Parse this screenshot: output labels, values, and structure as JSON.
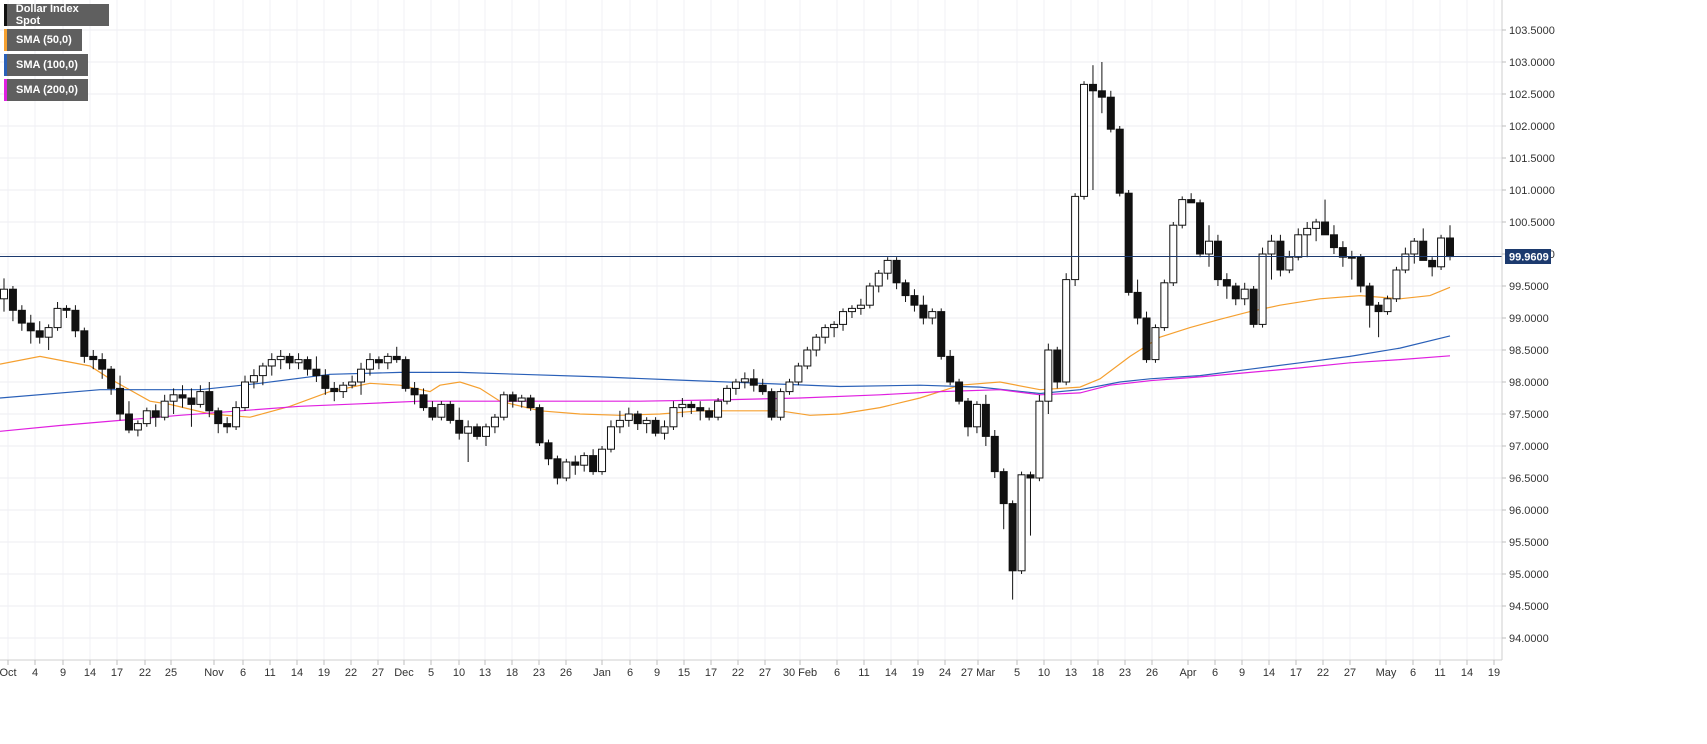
{
  "chart_data": {
    "type": "candlestick",
    "title": "Dollar Index Spot",
    "current_price": "99.9609",
    "ylim": [
      93.7,
      103.9
    ],
    "y_ticks": [
      "94.0000",
      "94.5000",
      "95.0000",
      "95.5000",
      "96.0000",
      "96.5000",
      "97.0000",
      "97.5000",
      "98.0000",
      "98.5000",
      "99.0000",
      "99.5000",
      "100.0000",
      "100.5000",
      "101.0000",
      "101.5000",
      "102.0000",
      "102.5000",
      "103.0000",
      "103.5000"
    ],
    "x_ticks": [
      "Oct",
      "4",
      "9",
      "14",
      "17",
      "22",
      "25",
      "Nov",
      "6",
      "11",
      "14",
      "19",
      "22",
      "27",
      "Dec",
      "5",
      "10",
      "13",
      "18",
      "23",
      "26",
      "Jan",
      "6",
      "9",
      "15",
      "17",
      "22",
      "27",
      "30 Feb",
      "6",
      "11",
      "14",
      "19",
      "24",
      "27 Mar",
      "5",
      "10",
      "13",
      "18",
      "23",
      "26",
      "Apr",
      "6",
      "9",
      "14",
      "17",
      "22",
      "27",
      "May",
      "6",
      "11",
      "14",
      "19"
    ],
    "legend": [
      {
        "name": "Dollar Index Spot",
        "color": "#111111"
      },
      {
        "name": "SMA (50,0)",
        "color": "#f5a030"
      },
      {
        "name": "SMA (100,0)",
        "color": "#2a60b8"
      },
      {
        "name": "SMA (200,0)",
        "color": "#e020e0"
      }
    ],
    "candles": [
      [
        99.3,
        99.62,
        99.1,
        99.45
      ],
      [
        99.45,
        99.5,
        98.95,
        99.12
      ],
      [
        99.12,
        99.2,
        98.8,
        98.92
      ],
      [
        98.92,
        99.05,
        98.6,
        98.8
      ],
      [
        98.8,
        98.95,
        98.6,
        98.7
      ],
      [
        98.7,
        98.9,
        98.5,
        98.85
      ],
      [
        98.85,
        99.25,
        98.8,
        99.15
      ],
      [
        99.15,
        99.2,
        99.0,
        99.12
      ],
      [
        99.12,
        99.2,
        98.7,
        98.8
      ],
      [
        98.8,
        98.85,
        98.3,
        98.4
      ],
      [
        98.4,
        98.5,
        98.2,
        98.35
      ],
      [
        98.35,
        98.45,
        98.05,
        98.2
      ],
      [
        98.2,
        98.25,
        97.8,
        97.9
      ],
      [
        97.9,
        98.1,
        97.4,
        97.5
      ],
      [
        97.5,
        97.7,
        97.2,
        97.25
      ],
      [
        97.25,
        97.4,
        97.15,
        97.35
      ],
      [
        97.35,
        97.6,
        97.3,
        97.55
      ],
      [
        97.55,
        97.65,
        97.3,
        97.45
      ],
      [
        97.45,
        97.8,
        97.4,
        97.7
      ],
      [
        97.7,
        97.9,
        97.5,
        97.8
      ],
      [
        97.8,
        97.95,
        97.6,
        97.75
      ],
      [
        97.75,
        97.9,
        97.3,
        97.65
      ],
      [
        97.65,
        97.95,
        97.6,
        97.85
      ],
      [
        97.85,
        98.0,
        97.45,
        97.55
      ],
      [
        97.55,
        97.6,
        97.2,
        97.35
      ],
      [
        97.35,
        97.45,
        97.2,
        97.3
      ],
      [
        97.3,
        97.7,
        97.25,
        97.6
      ],
      [
        97.6,
        98.1,
        97.55,
        98.0
      ],
      [
        98.0,
        98.2,
        97.9,
        98.1
      ],
      [
        98.1,
        98.3,
        97.95,
        98.25
      ],
      [
        98.25,
        98.45,
        98.1,
        98.35
      ],
      [
        98.35,
        98.5,
        98.2,
        98.4
      ],
      [
        98.4,
        98.45,
        98.2,
        98.3
      ],
      [
        98.3,
        98.45,
        98.2,
        98.35
      ],
      [
        98.35,
        98.4,
        98.1,
        98.2
      ],
      [
        98.2,
        98.4,
        98.0,
        98.1
      ],
      [
        98.1,
        98.2,
        97.8,
        97.9
      ],
      [
        97.9,
        98.0,
        97.7,
        97.85
      ],
      [
        97.85,
        98.0,
        97.75,
        97.95
      ],
      [
        97.95,
        98.1,
        97.9,
        98.0
      ],
      [
        98.0,
        98.3,
        97.8,
        98.2
      ],
      [
        98.2,
        98.45,
        98.1,
        98.35
      ],
      [
        98.35,
        98.4,
        98.2,
        98.3
      ],
      [
        98.3,
        98.45,
        98.2,
        98.4
      ],
      [
        98.4,
        98.55,
        98.3,
        98.35
      ],
      [
        98.35,
        98.4,
        97.85,
        97.9
      ],
      [
        97.9,
        98.0,
        97.65,
        97.8
      ],
      [
        97.8,
        97.9,
        97.55,
        97.6
      ],
      [
        97.6,
        97.7,
        97.4,
        97.45
      ],
      [
        97.45,
        97.7,
        97.4,
        97.65
      ],
      [
        97.65,
        97.7,
        97.35,
        97.4
      ],
      [
        97.4,
        97.6,
        97.1,
        97.2
      ],
      [
        97.2,
        97.4,
        96.75,
        97.3
      ],
      [
        97.3,
        97.35,
        97.1,
        97.15
      ],
      [
        97.15,
        97.35,
        97.0,
        97.3
      ],
      [
        97.3,
        97.5,
        97.2,
        97.45
      ],
      [
        97.45,
        97.85,
        97.4,
        97.8
      ],
      [
        97.8,
        97.85,
        97.6,
        97.7
      ],
      [
        97.7,
        97.8,
        97.6,
        97.75
      ],
      [
        97.75,
        97.8,
        97.55,
        97.6
      ],
      [
        97.6,
        97.65,
        97.0,
        97.05
      ],
      [
        97.05,
        97.1,
        96.7,
        96.8
      ],
      [
        96.8,
        96.85,
        96.4,
        96.5
      ],
      [
        96.5,
        96.8,
        96.45,
        96.75
      ],
      [
        96.75,
        96.85,
        96.55,
        96.7
      ],
      [
        96.7,
        96.9,
        96.6,
        96.85
      ],
      [
        96.85,
        96.95,
        96.55,
        96.6
      ],
      [
        96.6,
        97.0,
        96.55,
        96.95
      ],
      [
        96.95,
        97.4,
        96.9,
        97.3
      ],
      [
        97.3,
        97.55,
        97.2,
        97.4
      ],
      [
        97.4,
        97.6,
        97.3,
        97.5
      ],
      [
        97.5,
        97.55,
        97.25,
        97.35
      ],
      [
        97.35,
        97.45,
        97.2,
        97.4
      ],
      [
        97.4,
        97.45,
        97.15,
        97.2
      ],
      [
        97.2,
        97.4,
        97.1,
        97.3
      ],
      [
        97.3,
        97.7,
        97.25,
        97.6
      ],
      [
        97.6,
        97.75,
        97.45,
        97.65
      ],
      [
        97.65,
        97.7,
        97.5,
        97.6
      ],
      [
        97.6,
        97.7,
        97.4,
        97.55
      ],
      [
        97.55,
        97.6,
        97.4,
        97.45
      ],
      [
        97.45,
        97.75,
        97.4,
        97.7
      ],
      [
        97.7,
        97.95,
        97.65,
        97.9
      ],
      [
        97.9,
        98.05,
        97.8,
        98.0
      ],
      [
        98.0,
        98.15,
        97.9,
        98.05
      ],
      [
        98.05,
        98.2,
        97.85,
        97.95
      ],
      [
        97.95,
        98.05,
        97.8,
        97.85
      ],
      [
        97.85,
        97.9,
        97.4,
        97.45
      ],
      [
        97.45,
        97.9,
        97.4,
        97.85
      ],
      [
        97.85,
        98.05,
        97.8,
        98.0
      ],
      [
        98.0,
        98.3,
        97.95,
        98.25
      ],
      [
        98.25,
        98.55,
        98.2,
        98.5
      ],
      [
        98.5,
        98.75,
        98.4,
        98.7
      ],
      [
        98.7,
        98.9,
        98.6,
        98.85
      ],
      [
        98.85,
        98.95,
        98.7,
        98.9
      ],
      [
        98.9,
        99.15,
        98.8,
        99.1
      ],
      [
        99.1,
        99.2,
        99.0,
        99.15
      ],
      [
        99.15,
        99.3,
        99.05,
        99.2
      ],
      [
        99.2,
        99.55,
        99.15,
        99.5
      ],
      [
        99.5,
        99.75,
        99.4,
        99.7
      ],
      [
        99.7,
        99.95,
        99.6,
        99.9
      ],
      [
        99.9,
        99.95,
        99.45,
        99.55
      ],
      [
        99.55,
        99.6,
        99.25,
        99.35
      ],
      [
        99.35,
        99.45,
        99.1,
        99.2
      ],
      [
        99.2,
        99.35,
        98.9,
        99.0
      ],
      [
        99.0,
        99.15,
        98.9,
        99.1
      ],
      [
        99.1,
        99.15,
        98.35,
        98.4
      ],
      [
        98.4,
        98.5,
        97.95,
        98.0
      ],
      [
        98.0,
        98.05,
        97.65,
        97.7
      ],
      [
        97.7,
        97.75,
        97.15,
        97.3
      ],
      [
        97.3,
        97.7,
        97.2,
        97.65
      ],
      [
        97.65,
        97.8,
        97.0,
        97.15
      ],
      [
        97.15,
        97.25,
        96.5,
        96.6
      ],
      [
        96.6,
        96.65,
        95.7,
        96.1
      ],
      [
        96.1,
        96.15,
        94.6,
        95.05
      ],
      [
        95.05,
        96.6,
        95.0,
        96.55
      ],
      [
        96.55,
        96.6,
        95.6,
        96.5
      ],
      [
        96.5,
        97.8,
        96.45,
        97.7
      ],
      [
        97.7,
        98.6,
        97.5,
        98.5
      ],
      [
        98.5,
        98.55,
        97.9,
        98.0
      ],
      [
        98.0,
        99.7,
        97.95,
        99.6
      ],
      [
        99.6,
        100.95,
        99.5,
        100.9
      ],
      [
        100.9,
        102.7,
        100.85,
        102.65
      ],
      [
        102.65,
        102.95,
        101.0,
        102.55
      ],
      [
        102.55,
        103.0,
        102.2,
        102.45
      ],
      [
        102.45,
        102.55,
        101.9,
        101.95
      ],
      [
        101.95,
        102.0,
        100.9,
        100.95
      ],
      [
        100.95,
        101.0,
        99.35,
        99.4
      ],
      [
        99.4,
        99.6,
        98.9,
        99.0
      ],
      [
        99.0,
        99.1,
        98.3,
        98.35
      ],
      [
        98.35,
        98.9,
        98.3,
        98.85
      ],
      [
        98.85,
        99.6,
        98.8,
        99.55
      ],
      [
        99.55,
        100.5,
        99.5,
        100.45
      ],
      [
        100.45,
        100.9,
        100.4,
        100.85
      ],
      [
        100.85,
        100.95,
        100.8,
        100.8
      ],
      [
        100.8,
        100.85,
        99.95,
        100.0
      ],
      [
        100.0,
        100.45,
        99.8,
        100.2
      ],
      [
        100.2,
        100.3,
        99.5,
        99.6
      ],
      [
        99.6,
        99.7,
        99.3,
        99.5
      ],
      [
        99.5,
        99.55,
        99.2,
        99.3
      ],
      [
        99.3,
        99.55,
        99.2,
        99.45
      ],
      [
        99.45,
        99.5,
        98.85,
        98.9
      ],
      [
        98.9,
        100.1,
        98.85,
        100.0
      ],
      [
        100.0,
        100.3,
        99.6,
        100.2
      ],
      [
        100.2,
        100.3,
        99.65,
        99.75
      ],
      [
        99.75,
        100.05,
        99.7,
        99.95
      ],
      [
        99.95,
        100.4,
        99.9,
        100.3
      ],
      [
        100.3,
        100.5,
        99.95,
        100.4
      ],
      [
        100.4,
        100.55,
        100.2,
        100.5
      ],
      [
        100.5,
        100.85,
        100.3,
        100.3
      ],
      [
        100.3,
        100.45,
        100.0,
        100.1
      ],
      [
        100.1,
        100.2,
        99.8,
        99.95
      ],
      [
        99.95,
        100.05,
        99.6,
        99.95
      ],
      [
        99.95,
        100.0,
        99.4,
        99.5
      ],
      [
        99.5,
        99.55,
        98.85,
        99.2
      ],
      [
        99.2,
        99.25,
        98.7,
        99.1
      ],
      [
        99.1,
        99.35,
        99.05,
        99.3
      ],
      [
        99.3,
        99.8,
        99.25,
        99.75
      ],
      [
        99.75,
        100.1,
        99.7,
        100.0
      ],
      [
        100.0,
        100.25,
        99.85,
        100.2
      ],
      [
        100.2,
        100.4,
        99.9,
        99.9
      ],
      [
        99.9,
        99.95,
        99.65,
        99.8
      ],
      [
        99.8,
        100.3,
        99.75,
        100.25
      ],
      [
        100.25,
        100.45,
        99.9,
        99.96
      ]
    ],
    "sma50": [
      [
        0,
        98.28
      ],
      [
        40,
        98.4
      ],
      [
        90,
        98.25
      ],
      [
        110,
        98.05
      ],
      [
        150,
        97.7
      ],
      [
        170,
        97.65
      ],
      [
        210,
        97.5
      ],
      [
        250,
        97.45
      ],
      [
        290,
        97.62
      ],
      [
        330,
        97.85
      ],
      [
        370,
        97.98
      ],
      [
        400,
        97.95
      ],
      [
        430,
        97.85
      ],
      [
        440,
        97.95
      ],
      [
        460,
        98.0
      ],
      [
        480,
        97.9
      ],
      [
        500,
        97.7
      ],
      [
        540,
        97.55
      ],
      [
        580,
        97.5
      ],
      [
        620,
        97.48
      ],
      [
        660,
        97.5
      ],
      [
        700,
        97.55
      ],
      [
        740,
        97.55
      ],
      [
        780,
        97.55
      ],
      [
        810,
        97.48
      ],
      [
        840,
        97.5
      ],
      [
        880,
        97.6
      ],
      [
        920,
        97.75
      ],
      [
        960,
        97.95
      ],
      [
        1000,
        98.0
      ],
      [
        1040,
        97.88
      ],
      [
        1080,
        97.92
      ],
      [
        1100,
        98.05
      ],
      [
        1130,
        98.4
      ],
      [
        1160,
        98.7
      ],
      [
        1190,
        98.85
      ],
      [
        1220,
        98.98
      ],
      [
        1250,
        99.1
      ],
      [
        1280,
        99.2
      ],
      [
        1320,
        99.3
      ],
      [
        1360,
        99.35
      ],
      [
        1400,
        99.3
      ],
      [
        1430,
        99.35
      ],
      [
        1450,
        99.48
      ]
    ],
    "sma100": [
      [
        0,
        97.75
      ],
      [
        100,
        97.88
      ],
      [
        200,
        97.88
      ],
      [
        260,
        97.98
      ],
      [
        330,
        98.12
      ],
      [
        400,
        98.15
      ],
      [
        460,
        98.15
      ],
      [
        520,
        98.12
      ],
      [
        600,
        98.08
      ],
      [
        680,
        98.03
      ],
      [
        760,
        97.98
      ],
      [
        840,
        97.93
      ],
      [
        920,
        97.95
      ],
      [
        980,
        97.92
      ],
      [
        1040,
        97.82
      ],
      [
        1080,
        97.88
      ],
      [
        1120,
        98.0
      ],
      [
        1150,
        98.05
      ],
      [
        1200,
        98.1
      ],
      [
        1250,
        98.2
      ],
      [
        1300,
        98.3
      ],
      [
        1350,
        98.4
      ],
      [
        1400,
        98.53
      ],
      [
        1450,
        98.72
      ]
    ],
    "sma200": [
      [
        0,
        97.23
      ],
      [
        60,
        97.32
      ],
      [
        120,
        97.4
      ],
      [
        180,
        97.48
      ],
      [
        240,
        97.55
      ],
      [
        300,
        97.62
      ],
      [
        360,
        97.66
      ],
      [
        420,
        97.7
      ],
      [
        480,
        97.7
      ],
      [
        560,
        97.7
      ],
      [
        640,
        97.7
      ],
      [
        720,
        97.72
      ],
      [
        800,
        97.75
      ],
      [
        880,
        97.8
      ],
      [
        940,
        97.85
      ],
      [
        1000,
        97.88
      ],
      [
        1040,
        97.8
      ],
      [
        1080,
        97.83
      ],
      [
        1110,
        97.95
      ],
      [
        1150,
        98.02
      ],
      [
        1200,
        98.08
      ],
      [
        1250,
        98.15
      ],
      [
        1300,
        98.22
      ],
      [
        1350,
        98.3
      ],
      [
        1400,
        98.35
      ],
      [
        1450,
        98.41
      ]
    ]
  }
}
